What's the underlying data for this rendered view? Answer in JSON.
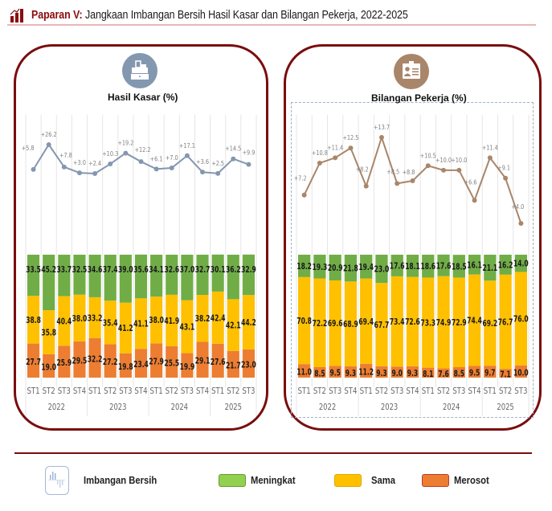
{
  "header": {
    "title_lead": "Paparan V:",
    "title_rest": " Jangkaan Imbangan Bersih Hasil Kasar dan Bilangan Pekerja, 2022-2025",
    "icon": "bar-chart-icon"
  },
  "colors": {
    "brand": "#7a0d0d",
    "meningkat": "#70ad47",
    "sama": "#ffc000",
    "merosot": "#ed7d31",
    "line_left": "#8497b0",
    "line_right": "#a9866a",
    "icon_left_bg": "#8497b0",
    "icon_right_bg": "#a9866a"
  },
  "panels": {
    "left": {
      "label": "Hasil Kasar (%)",
      "icon": "cash-register-icon"
    },
    "right": {
      "label": "Bilangan Pekerja (%)",
      "icon": "id-card-icon"
    }
  },
  "legend": {
    "net_balance": "Imbangan Bersih",
    "net_balance_icon": "net-balance-icon",
    "meningkat": "Meningkat",
    "sama": "Sama",
    "merosot": "Merosot"
  },
  "chart_data": [
    {
      "type": "bar",
      "stacked": true,
      "title": "Hasil Kasar (%)",
      "categories": [
        "ST1",
        "ST2",
        "ST3",
        "ST4",
        "ST1",
        "ST2",
        "ST3",
        "ST4",
        "ST1",
        "ST2",
        "ST3",
        "ST4",
        "ST1",
        "ST2",
        "ST3"
      ],
      "groups": [
        {
          "label": "2022",
          "count": 4
        },
        {
          "label": "2023",
          "count": 4
        },
        {
          "label": "2024",
          "count": 4
        },
        {
          "label": "2025",
          "count": 3
        }
      ],
      "series": [
        {
          "name": "Merosot",
          "values": [
            27.7,
            19.0,
            25.9,
            29.5,
            32.2,
            27.2,
            19.8,
            23.4,
            27.9,
            25.5,
            19.9,
            29.1,
            27.6,
            21.7,
            23.0
          ]
        },
        {
          "name": "Sama",
          "values": [
            38.8,
            35.8,
            40.4,
            38.0,
            33.2,
            35.4,
            41.2,
            41.1,
            38.0,
            41.9,
            43.1,
            38.2,
            42.4,
            42.1,
            44.2
          ]
        },
        {
          "name": "Meningkat",
          "values": [
            33.5,
            45.2,
            33.7,
            32.5,
            34.6,
            37.4,
            39.0,
            35.6,
            34.1,
            32.6,
            37.0,
            32.7,
            30.1,
            36.2,
            32.9
          ]
        }
      ],
      "net_balance": {
        "name": "Imbangan Bersih",
        "values": [
          5.8,
          26.2,
          7.8,
          3.0,
          2.4,
          10.3,
          19.2,
          12.2,
          6.1,
          7.0,
          17.1,
          3.6,
          2.5,
          14.5,
          9.9
        ],
        "labels": [
          "+5.8",
          "+26.2",
          "+7.8",
          "+3.0",
          "+2.4",
          "+10.3",
          "+19.2",
          "+12.2",
          "+6.1",
          "+7.0",
          "+17.1",
          "+3.6",
          "+2.5",
          "+14.5",
          "+9.9"
        ]
      },
      "ylim": [
        0,
        100
      ],
      "grid": "vertical"
    },
    {
      "type": "bar",
      "stacked": true,
      "title": "Bilangan Pekerja (%)",
      "categories": [
        "ST1",
        "ST2",
        "ST3",
        "ST4",
        "ST1",
        "ST2",
        "ST3",
        "ST4",
        "ST1",
        "ST2",
        "ST3",
        "ST4",
        "ST1",
        "ST2",
        "ST3"
      ],
      "groups": [
        {
          "label": "2022",
          "count": 4
        },
        {
          "label": "2023",
          "count": 4
        },
        {
          "label": "2024",
          "count": 4
        },
        {
          "label": "2025",
          "count": 3
        }
      ],
      "series": [
        {
          "name": "Merosot",
          "values": [
            11.0,
            8.5,
            9.5,
            9.3,
            11.2,
            9.3,
            9.0,
            9.3,
            8.1,
            7.6,
            8.5,
            9.5,
            9.7,
            7.1,
            10.0
          ]
        },
        {
          "name": "Sama",
          "values": [
            70.8,
            72.2,
            69.6,
            68.9,
            69.4,
            67.7,
            73.4,
            72.6,
            73.3,
            74.9,
            72.9,
            74.4,
            69.2,
            76.7,
            76.0
          ]
        },
        {
          "name": "Meningkat",
          "values": [
            18.2,
            19.3,
            20.9,
            21.8,
            19.4,
            23.0,
            17.6,
            18.1,
            18.6,
            17.6,
            18.5,
            16.1,
            21.1,
            16.2,
            14.0
          ]
        }
      ],
      "net_balance": {
        "name": "Imbangan Bersih",
        "values": [
          7.2,
          10.8,
          11.4,
          12.5,
          8.2,
          13.7,
          8.5,
          8.8,
          10.5,
          10.0,
          10.0,
          6.6,
          11.4,
          9.1,
          4.0
        ],
        "labels": [
          "+7.2",
          "+10.8",
          "+11.4",
          "+12.5",
          "+8.2",
          "+13.7",
          "+8.5",
          "+8.8",
          "+10.5",
          "+10.0",
          "+10.0",
          "+6.6",
          "+11.4",
          "+9.1",
          "+4.0"
        ]
      },
      "ylim": [
        0,
        100
      ],
      "grid": "vertical"
    }
  ]
}
